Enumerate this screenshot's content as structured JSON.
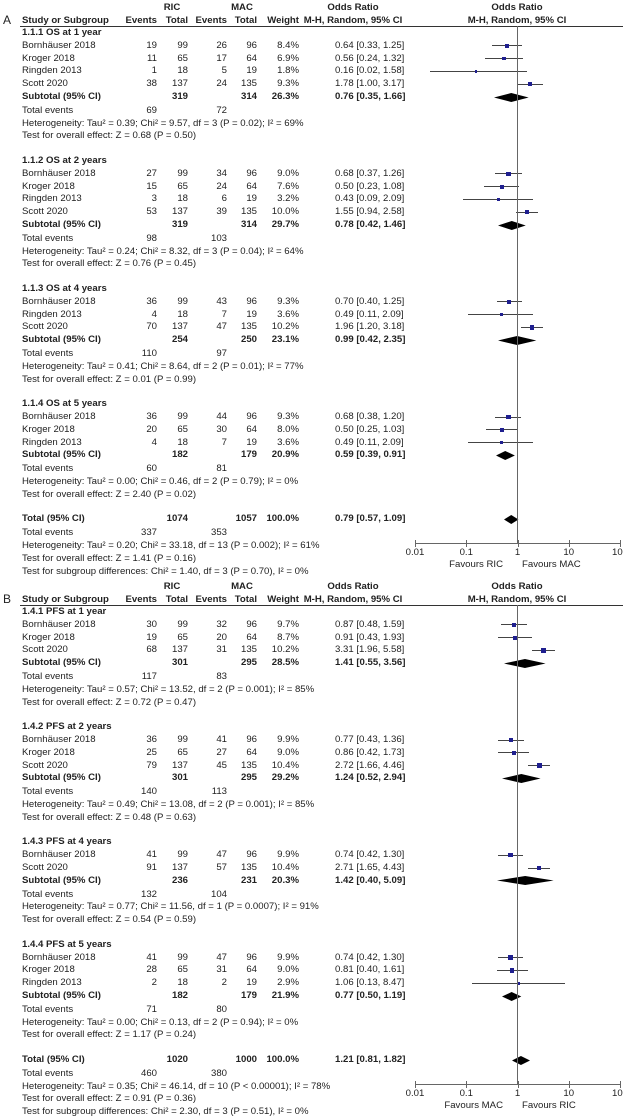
{
  "chart_data": {
    "type": "forest",
    "x_scale": "log",
    "xlim": [
      0.01,
      100
    ],
    "colors": {
      "study_marker": "#1f1f8f",
      "ci_line": "#444444",
      "diamond": "#000000",
      "axis": "#666666"
    },
    "panels": [
      {
        "label": "A",
        "header": {
          "group1": "RIC",
          "group2": "MAC",
          "or_title": "Odds Ratio",
          "or_method": "M-H, Random, 95% CI",
          "plot_title": "Odds Ratio",
          "plot_method": "M-H, Random, 95% CI",
          "study": "Study or Subgroup",
          "events": "Events",
          "total": "Total",
          "weight": "Weight"
        },
        "subgroups": [
          {
            "title": "1.1.1 OS at 1 year",
            "studies": [
              {
                "name": "Bornhäuser 2018",
                "ric_events": "19",
                "ric_total": "99",
                "mac_events": "26",
                "mac_total": "96",
                "weight": "8.4%",
                "or_text": "0.64 [0.33, 1.25]"
              },
              {
                "name": "Kroger 2018",
                "ric_events": "11",
                "ric_total": "65",
                "mac_events": "17",
                "mac_total": "64",
                "weight": "6.9%",
                "or_text": "0.56 [0.24, 1.32]"
              },
              {
                "name": "Ringden 2013",
                "ric_events": "1",
                "ric_total": "18",
                "mac_events": "5",
                "mac_total": "19",
                "weight": "1.8%",
                "or_text": "0.16 [0.02, 1.58]"
              },
              {
                "name": "Scott 2020",
                "ric_events": "38",
                "ric_total": "137",
                "mac_events": "24",
                "mac_total": "135",
                "weight": "9.3%",
                "or_text": "1.78 [1.00, 3.17]"
              }
            ],
            "subtotal": {
              "label": "Subtotal (95% CI)",
              "ric_total": "319",
              "mac_total": "314",
              "weight": "26.3%",
              "or_text": "0.76 [0.35, 1.66]"
            },
            "total_events": {
              "label": "Total events",
              "ric": "69",
              "mac": "72"
            },
            "heterogeneity": "Heterogeneity: Tau² = 0.39; Chi² = 9.57, df = 3 (P = 0.02); I² = 69%",
            "overall_effect": "Test for overall effect: Z = 0.68 (P = 0.50)"
          },
          {
            "title": "1.1.2 OS at 2 years",
            "studies": [
              {
                "name": "Bornhäuser 2018",
                "ric_events": "27",
                "ric_total": "99",
                "mac_events": "34",
                "mac_total": "96",
                "weight": "9.0%",
                "or_text": "0.68 [0.37, 1.26]"
              },
              {
                "name": "Kroger 2018",
                "ric_events": "15",
                "ric_total": "65",
                "mac_events": "24",
                "mac_total": "64",
                "weight": "7.6%",
                "or_text": "0.50 [0.23, 1.08]"
              },
              {
                "name": "Ringden 2013",
                "ric_events": "3",
                "ric_total": "18",
                "mac_events": "6",
                "mac_total": "19",
                "weight": "3.2%",
                "or_text": "0.43 [0.09, 2.09]"
              },
              {
                "name": "Scott 2020",
                "ric_events": "53",
                "ric_total": "137",
                "mac_events": "39",
                "mac_total": "135",
                "weight": "10.0%",
                "or_text": "1.55 [0.94, 2.58]"
              }
            ],
            "subtotal": {
              "label": "Subtotal (95% CI)",
              "ric_total": "319",
              "mac_total": "314",
              "weight": "29.7%",
              "or_text": "0.78 [0.42, 1.46]"
            },
            "total_events": {
              "label": "Total events",
              "ric": "98",
              "mac": "103"
            },
            "heterogeneity": "Heterogeneity: Tau² = 0.24; Chi² = 8.32, df = 3 (P = 0.04); I² = 64%",
            "overall_effect": "Test for overall effect: Z = 0.76 (P = 0.45)"
          },
          {
            "title": "1.1.3 OS at 4 years",
            "studies": [
              {
                "name": "Bornhäuser 2018",
                "ric_events": "36",
                "ric_total": "99",
                "mac_events": "43",
                "mac_total": "96",
                "weight": "9.3%",
                "or_text": "0.70 [0.40, 1.25]"
              },
              {
                "name": "Ringden 2013",
                "ric_events": "4",
                "ric_total": "18",
                "mac_events": "7",
                "mac_total": "19",
                "weight": "3.6%",
                "or_text": "0.49 [0.11, 2.09]"
              },
              {
                "name": "Scott 2020",
                "ric_events": "70",
                "ric_total": "137",
                "mac_events": "47",
                "mac_total": "135",
                "weight": "10.2%",
                "or_text": "1.96 [1.20, 3.18]"
              }
            ],
            "subtotal": {
              "label": "Subtotal (95% CI)",
              "ric_total": "254",
              "mac_total": "250",
              "weight": "23.1%",
              "or_text": "0.99 [0.42, 2.35]"
            },
            "total_events": {
              "label": "Total events",
              "ric": "110",
              "mac": "97"
            },
            "heterogeneity": "Heterogeneity: Tau² = 0.41; Chi² = 8.64, df = 2 (P = 0.01); I² = 77%",
            "overall_effect": "Test for overall effect: Z = 0.01 (P = 0.99)"
          },
          {
            "title": "1.1.4 OS at 5 years",
            "studies": [
              {
                "name": "Bornhäuser 2018",
                "ric_events": "36",
                "ric_total": "99",
                "mac_events": "44",
                "mac_total": "96",
                "weight": "9.3%",
                "or_text": "0.68 [0.38, 1.20]"
              },
              {
                "name": "Kroger 2018",
                "ric_events": "20",
                "ric_total": "65",
                "mac_events": "30",
                "mac_total": "64",
                "weight": "8.0%",
                "or_text": "0.50 [0.25, 1.03]"
              },
              {
                "name": "Ringden 2013",
                "ric_events": "4",
                "ric_total": "18",
                "mac_events": "7",
                "mac_total": "19",
                "weight": "3.6%",
                "or_text": "0.49 [0.11, 2.09]"
              }
            ],
            "subtotal": {
              "label": "Subtotal (95% CI)",
              "ric_total": "182",
              "mac_total": "179",
              "weight": "20.9%",
              "or_text": "0.59 [0.39, 0.91]"
            },
            "total_events": {
              "label": "Total events",
              "ric": "60",
              "mac": "81"
            },
            "heterogeneity": "Heterogeneity: Tau² = 0.00; Chi² = 0.46, df = 2 (P = 0.79); I² = 0%",
            "overall_effect": "Test for overall effect: Z = 2.40 (P = 0.02)"
          }
        ],
        "total": {
          "label": "Total (95% CI)",
          "ric_total": "1074",
          "mac_total": "1057",
          "weight": "100.0%",
          "or_text": "0.79 [0.57, 1.09]"
        },
        "total_events": {
          "label": "Total events",
          "ric": "337",
          "mac": "353"
        },
        "heterogeneity": "Heterogeneity: Tau² = 0.20; Chi² = 33.18, df = 13 (P = 0.002); I² = 61%",
        "overall_effect": "Test for overall effect: Z = 1.41 (P = 0.16)",
        "subgroup_differences": "Test for subgroup differences: Chi² = 1.40, df = 3 (P = 0.70), I² = 0%",
        "axis": {
          "ticks": [
            "0.01",
            "0.1",
            "1",
            "10",
            "100"
          ],
          "favours_left": "Favours RIC",
          "favours_right": "Favours MAC"
        }
      },
      {
        "label": "B",
        "header": {
          "group1": "RIC",
          "group2": "MAC",
          "or_title": "Odds Ratio",
          "or_method": "M-H, Random, 95% CI",
          "plot_title": "Odds Ratio",
          "plot_method": "M-H, Random, 95% CI",
          "study": "Study or Subgroup",
          "events": "Events",
          "total": "Total",
          "weight": "Weight"
        },
        "subgroups": [
          {
            "title": "1.4.1 PFS at 1 year",
            "studies": [
              {
                "name": "Bornhäuser 2018",
                "ric_events": "30",
                "ric_total": "99",
                "mac_events": "32",
                "mac_total": "96",
                "weight": "9.7%",
                "or_text": "0.87 [0.48, 1.59]"
              },
              {
                "name": "Kroger 2018",
                "ric_events": "19",
                "ric_total": "65",
                "mac_events": "20",
                "mac_total": "64",
                "weight": "8.7%",
                "or_text": "0.91 [0.43, 1.93]"
              },
              {
                "name": "Scott 2020",
                "ric_events": "68",
                "ric_total": "137",
                "mac_events": "31",
                "mac_total": "135",
                "weight": "10.2%",
                "or_text": "3.31 [1.96, 5.58]"
              }
            ],
            "subtotal": {
              "label": "Subtotal (95% CI)",
              "ric_total": "301",
              "mac_total": "295",
              "weight": "28.5%",
              "or_text": "1.41 [0.55, 3.56]"
            },
            "total_events": {
              "label": "Total events",
              "ric": "117",
              "mac": "83"
            },
            "heterogeneity": "Heterogeneity: Tau² = 0.57; Chi² = 13.52, df = 2 (P = 0.001); I² = 85%",
            "overall_effect": "Test for overall effect: Z = 0.72 (P = 0.47)"
          },
          {
            "title": "1.4.2 PFS at 2 years",
            "studies": [
              {
                "name": "Bornhäuser 2018",
                "ric_events": "36",
                "ric_total": "99",
                "mac_events": "41",
                "mac_total": "96",
                "weight": "9.9%",
                "or_text": "0.77 [0.43, 1.36]"
              },
              {
                "name": "Kroger 2018",
                "ric_events": "25",
                "ric_total": "65",
                "mac_events": "27",
                "mac_total": "64",
                "weight": "9.0%",
                "or_text": "0.86 [0.42, 1.73]"
              },
              {
                "name": "Scott 2020",
                "ric_events": "79",
                "ric_total": "137",
                "mac_events": "45",
                "mac_total": "135",
                "weight": "10.4%",
                "or_text": "2.72 [1.66, 4.46]"
              }
            ],
            "subtotal": {
              "label": "Subtotal (95% CI)",
              "ric_total": "301",
              "mac_total": "295",
              "weight": "29.2%",
              "or_text": "1.24 [0.52, 2.94]"
            },
            "total_events": {
              "label": "Total events",
              "ric": "140",
              "mac": "113"
            },
            "heterogeneity": "Heterogeneity: Tau² = 0.49; Chi² = 13.08, df = 2 (P = 0.001); I² = 85%",
            "overall_effect": "Test for overall effect: Z = 0.48 (P = 0.63)"
          },
          {
            "title": "1.4.3 PFS at 4 years",
            "studies": [
              {
                "name": "Bornhäuser 2018",
                "ric_events": "41",
                "ric_total": "99",
                "mac_events": "47",
                "mac_total": "96",
                "weight": "9.9%",
                "or_text": "0.74 [0.42, 1.30]"
              },
              {
                "name": "Scott 2020",
                "ric_events": "91",
                "ric_total": "137",
                "mac_events": "57",
                "mac_total": "135",
                "weight": "10.4%",
                "or_text": "2.71 [1.65, 4.43]"
              }
            ],
            "subtotal": {
              "label": "Subtotal (95% CI)",
              "ric_total": "236",
              "mac_total": "231",
              "weight": "20.3%",
              "or_text": "1.42 [0.40, 5.09]"
            },
            "total_events": {
              "label": "Total events",
              "ric": "132",
              "mac": "104"
            },
            "heterogeneity": "Heterogeneity: Tau² = 0.77; Chi² = 11.56, df = 1 (P = 0.0007); I² = 91%",
            "overall_effect": "Test for overall effect: Z = 0.54 (P = 0.59)"
          },
          {
            "title": "1.4.4 PFS at 5 years",
            "studies": [
              {
                "name": "Bornhäuser 2018",
                "ric_events": "41",
                "ric_total": "99",
                "mac_events": "47",
                "mac_total": "96",
                "weight": "9.9%",
                "or_text": "0.74 [0.42, 1.30]"
              },
              {
                "name": "Kroger 2018",
                "ric_events": "28",
                "ric_total": "65",
                "mac_events": "31",
                "mac_total": "64",
                "weight": "9.0%",
                "or_text": "0.81 [0.40, 1.61]"
              },
              {
                "name": "Ringden 2013",
                "ric_events": "2",
                "ric_total": "18",
                "mac_events": "2",
                "mac_total": "19",
                "weight": "2.9%",
                "or_text": "1.06 [0.13, 8.47]"
              }
            ],
            "subtotal": {
              "label": "Subtotal (95% CI)",
              "ric_total": "182",
              "mac_total": "179",
              "weight": "21.9%",
              "or_text": "0.77 [0.50, 1.19]"
            },
            "total_events": {
              "label": "Total events",
              "ric": "71",
              "mac": "80"
            },
            "heterogeneity": "Heterogeneity: Tau² = 0.00; Chi² = 0.13, df = 2 (P = 0.94); I² = 0%",
            "overall_effect": "Test for overall effect: Z = 1.17 (P = 0.24)"
          }
        ],
        "total": {
          "label": "Total (95% CI)",
          "ric_total": "1020",
          "mac_total": "1000",
          "weight": "100.0%",
          "or_text": "1.21 [0.81, 1.82]"
        },
        "total_events": {
          "label": "Total events",
          "ric": "460",
          "mac": "380"
        },
        "heterogeneity": "Heterogeneity: Tau² = 0.35; Chi² = 46.14, df = 10 (P < 0.00001); I² = 78%",
        "overall_effect": "Test for overall effect: Z = 0.91 (P = 0.36)",
        "subgroup_differences": "Test for subgroup differences: Chi² = 2.30, df = 3 (P = 0.51), I² = 0%",
        "axis": {
          "ticks": [
            "0.01",
            "0.1",
            "1",
            "10",
            "100"
          ],
          "favours_left": "Favours MAC",
          "favours_right": "Favours RIC"
        }
      }
    ]
  }
}
